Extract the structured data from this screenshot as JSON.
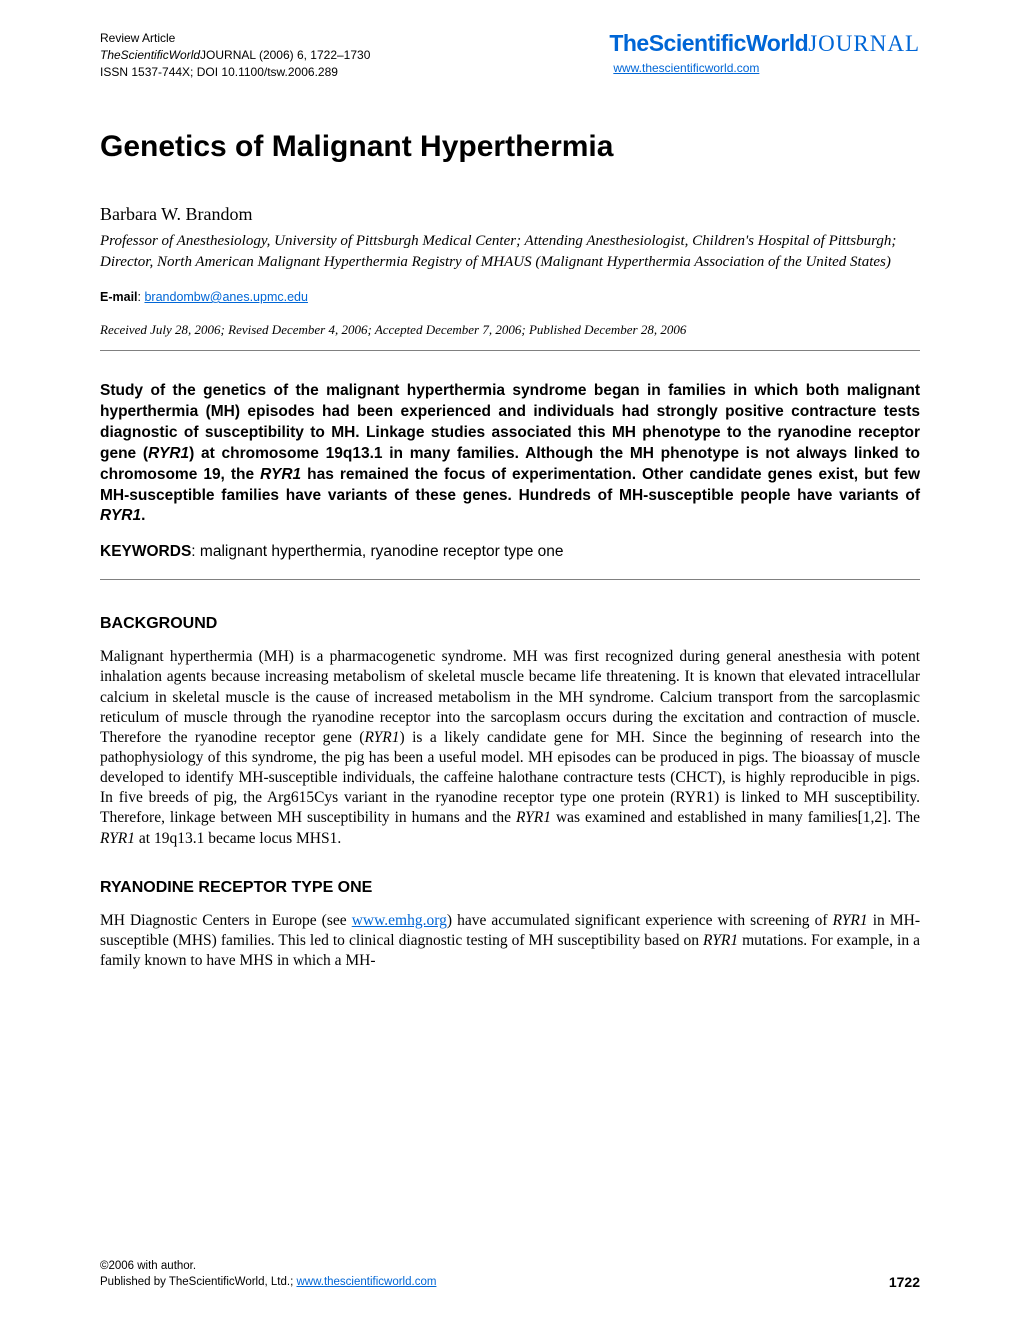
{
  "header": {
    "line1": "Review Article",
    "line2_prefix": "TheScientificWorld",
    "line2_suffix": "JOURNAL",
    "line2_rest": " (2006) 6, 1722–1730",
    "line3": "ISSN 1537-744X; DOI 10.1100/tsw.2006.289"
  },
  "logo": {
    "the": "The",
    "sw": "ScientificWorld",
    "journal": "JOURNAL",
    "url": "www.thescientificworld.com"
  },
  "title": "Genetics of Malignant Hyperthermia",
  "author": "Barbara W. Brandom",
  "affiliation": "Professor of Anesthesiology, University of Pittsburgh Medical Center; Attending Anesthesiologist, Children's Hospital of Pittsburgh; Director, North American Malignant Hyperthermia Registry of MHAUS (Malignant Hyperthermia Association of the United States)",
  "email_label": "E-mail",
  "email": "brandombw@anes.upmc.edu",
  "dates": "Received July 28, 2006; Revised December 4, 2006; Accepted December 7, 2006; Published December 28, 2006",
  "abstract_parts": {
    "p1": "Study of the genetics of the malignant hyperthermia syndrome began in families in which both malignant hyperthermia (MH) episodes had been experienced and individuals had strongly positive contracture tests diagnostic of susceptibility to MH. Linkage studies associated this MH phenotype to the ryanodine receptor gene (",
    "ryr1_1": "RYR1",
    "p2": ") at chromosome 19q13.1 in many families. Although the MH phenotype is not always linked to chromosome 19, the ",
    "ryr1_2": "RYR1",
    "p3": " has remained the focus of experimentation. Other candidate genes exist, but few MH-susceptible families have variants of these genes. Hundreds of MH-susceptible people have variants of ",
    "ryr1_3": "RYR1",
    "p4": "."
  },
  "keywords_label": "KEYWORDS",
  "keywords": ": malignant hyperthermia, ryanodine receptor type one",
  "section1_heading": "BACKGROUND",
  "section1_body": {
    "p1": "Malignant hyperthermia (MH) is a pharmacogenetic syndrome. MH was first recognized during general anesthesia with potent inhalation agents because increasing metabolism of skeletal muscle became life threatening. It is known that elevated intracellular calcium in skeletal muscle is the cause of increased metabolism in the MH syndrome. Calcium transport from the sarcoplasmic reticulum of muscle through the ryanodine receptor into the sarcoplasm occurs during the excitation and contraction of muscle. Therefore the ryanodine receptor gene (",
    "ryr1_1": "RYR1",
    "p2": ") is a likely candidate gene for MH. Since the beginning of research into the pathophysiology of this syndrome, the pig has been a useful model. MH episodes can be produced in pigs. The bioassay of muscle developed to identify MH-susceptible individuals, the caffeine halothane contracture tests (CHCT), is highly reproducible in pigs. In five breeds of pig, the Arg615Cys variant in the ryanodine receptor type one protein (RYR1) is linked to MH susceptibility. Therefore, linkage between MH susceptibility in humans and the ",
    "ryr1_2": "RYR1",
    "p3": " was examined and established in many families[1,2]. The ",
    "ryr1_3": "RYR1",
    "p4": " at 19q13.1 became locus MHS1."
  },
  "section2_heading": "RYANODINE RECEPTOR TYPE ONE",
  "section2_body": {
    "p1": "MH Diagnostic Centers in Europe (see ",
    "link": "www.emhg.org",
    "p2": ") have accumulated significant experience with screening of ",
    "ryr1_1": "RYR1",
    "p3": " in MH-susceptible (MHS) families. This led to clinical diagnostic testing of MH susceptibility based on ",
    "ryr1_2": "RYR1",
    "p4": " mutations. For example, in a family known to have MHS in which a MH-"
  },
  "footer": {
    "copyright": "©2006 with author.",
    "publisher_prefix": "Published by TheScientificWorld, Ltd.; ",
    "publisher_url": "www.thescientificworld.com",
    "page_number": "1722"
  },
  "colors": {
    "link": "#0066d6",
    "text": "#000000",
    "divider": "#808080"
  }
}
